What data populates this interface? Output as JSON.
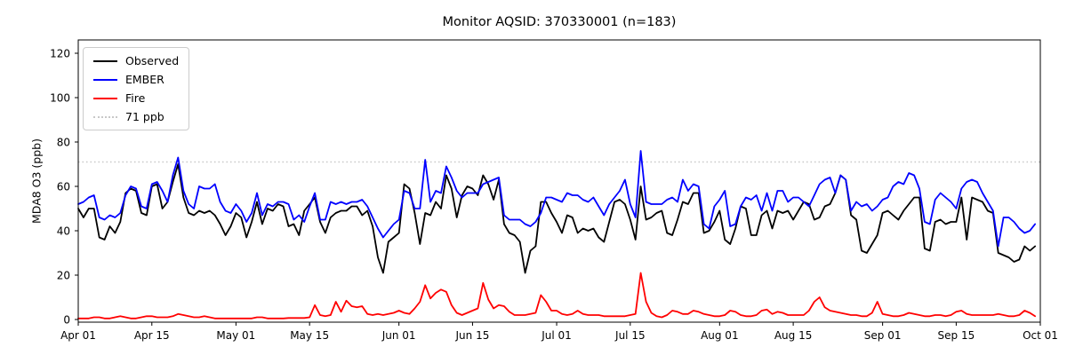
{
  "figure": {
    "title": "Monitor AQSID: 370330001 (n=183)",
    "ylabel": "MDA8 O3 (ppb)"
  },
  "chart_data": {
    "type": "line",
    "title": "Monitor AQSID: 370330001 (n=183)",
    "xlabel": "",
    "ylabel": "MDA8 O3 (ppb)",
    "grid": false,
    "legend_position": "upper-left",
    "x_unit": "days since Apr 01 (daily values, Apr 01 - Sep 30)",
    "x_domain": [
      0,
      183
    ],
    "ylim": [
      -1.2,
      126
    ],
    "yticks": [
      0,
      20,
      40,
      60,
      80,
      100,
      120
    ],
    "xticks": {
      "days": [
        0,
        14,
        30,
        44,
        61,
        75,
        91,
        105,
        122,
        136,
        153,
        167,
        183
      ],
      "labels": [
        "Apr 01",
        "Apr 15",
        "May 01",
        "May 15",
        "Jun 01",
        "Jun 15",
        "Jul 01",
        "Jul 15",
        "Aug 01",
        "Aug 15",
        "Sep 01",
        "Sep 15",
        "Oct 01"
      ]
    },
    "threshold": {
      "value": 71,
      "label": "71 ppb",
      "color": "#c8c8c8",
      "style": "dotted"
    },
    "series": [
      {
        "name": "Observed",
        "color": "#000000",
        "values": [
          50,
          46,
          50,
          50,
          37,
          36,
          42,
          39,
          44,
          57,
          59,
          58,
          48,
          47,
          60,
          61,
          50,
          53,
          62,
          70,
          55,
          48,
          47,
          49,
          48,
          49,
          47,
          43,
          38,
          42,
          48,
          46,
          37,
          44,
          53,
          43,
          50,
          49,
          52,
          51,
          42,
          43,
          38,
          49,
          52,
          55,
          44,
          39,
          46,
          48,
          49,
          49,
          51,
          51,
          47,
          49,
          42,
          28,
          21,
          35,
          37,
          39,
          61,
          59,
          48,
          34,
          48,
          47,
          53,
          50,
          65,
          59,
          46,
          56,
          60,
          59,
          56,
          65,
          61,
          54,
          63,
          43,
          39,
          38,
          35,
          21,
          31,
          33,
          53,
          53,
          48,
          44,
          39,
          47,
          46,
          39,
          41,
          40,
          41,
          37,
          35,
          44,
          53,
          54,
          52,
          45,
          36,
          60,
          45,
          46,
          48,
          49,
          39,
          38,
          45,
          53,
          52,
          57,
          57,
          39,
          40,
          44,
          49,
          36,
          34,
          41,
          51,
          50,
          38,
          38,
          47,
          49,
          41,
          49,
          48,
          49,
          45,
          49,
          53,
          52,
          45,
          46,
          51,
          52,
          57,
          65,
          63,
          47,
          45,
          31,
          30,
          34,
          38,
          48,
          49,
          47,
          45,
          49,
          52,
          55,
          55,
          32,
          31,
          44,
          45,
          43,
          44,
          44,
          55,
          36,
          55,
          54,
          53,
          49,
          48,
          30,
          29,
          28,
          26,
          27,
          33,
          31,
          33
        ]
      },
      {
        "name": "EMBER",
        "color": "#0000ff",
        "values": [
          52,
          53,
          55,
          56,
          46,
          45,
          47,
          46,
          48,
          56,
          60,
          59,
          51,
          50,
          61,
          62,
          58,
          53,
          65,
          73,
          58,
          52,
          50,
          60,
          59,
          59,
          61,
          53,
          49,
          48,
          52,
          49,
          44,
          48,
          57,
          47,
          52,
          51,
          53,
          53,
          52,
          45,
          47,
          44,
          51,
          57,
          45,
          45,
          53,
          52,
          53,
          52,
          53,
          53,
          54,
          51,
          46,
          41,
          37,
          40,
          43,
          45,
          58,
          57,
          50,
          50,
          72,
          53,
          58,
          57,
          69,
          64,
          58,
          55,
          57,
          57,
          57,
          61,
          62,
          63,
          64,
          47,
          45,
          45,
          45,
          43,
          42,
          44,
          48,
          55,
          55,
          54,
          53,
          57,
          56,
          56,
          54,
          53,
          55,
          51,
          47,
          52,
          55,
          58,
          63,
          52,
          46,
          76,
          53,
          52,
          52,
          52,
          54,
          55,
          53,
          63,
          58,
          61,
          60,
          43,
          41,
          51,
          54,
          58,
          42,
          43,
          51,
          55,
          54,
          56,
          49,
          57,
          49,
          58,
          58,
          53,
          55,
          55,
          53,
          51,
          56,
          61,
          63,
          64,
          57,
          65,
          63,
          49,
          53,
          51,
          52,
          49,
          51,
          54,
          55,
          60,
          62,
          61,
          66,
          65,
          59,
          44,
          43,
          54,
          57,
          55,
          53,
          50,
          59,
          62,
          63,
          62,
          57,
          53,
          49,
          33,
          46,
          46,
          44,
          41,
          39,
          40,
          43
        ]
      },
      {
        "name": "Fire",
        "color": "#ff0000",
        "values": [
          0.5,
          0.5,
          0.5,
          1,
          1,
          0.5,
          0.5,
          1,
          1.5,
          1,
          0.5,
          0.5,
          1,
          1.5,
          1.5,
          1,
          1,
          1,
          1.5,
          2.5,
          2,
          1.5,
          1,
          1,
          1.5,
          1,
          0.5,
          0.5,
          0.5,
          0.5,
          0.5,
          0.5,
          0.5,
          0.5,
          1,
          1,
          0.5,
          0.5,
          0.5,
          0.5,
          0.7,
          0.7,
          0.7,
          0.7,
          1,
          6.5,
          2,
          1.5,
          2,
          8,
          3.5,
          8.5,
          6,
          5.5,
          6,
          2.5,
          2,
          2.5,
          2,
          2.5,
          3,
          4,
          3,
          2.5,
          5,
          8,
          15.5,
          9.5,
          12,
          13.5,
          12.5,
          6.5,
          3,
          2,
          3,
          4,
          5,
          16.5,
          9,
          5,
          6.5,
          6,
          3.5,
          2,
          2,
          2,
          2.5,
          3,
          11,
          8,
          4,
          4,
          2.5,
          2,
          2.5,
          4,
          2.5,
          2,
          2,
          2,
          1.5,
          1.5,
          1.5,
          1.5,
          1.5,
          2,
          2.5,
          21,
          8,
          3,
          1.5,
          1,
          2,
          4,
          3.5,
          2.5,
          2.5,
          4,
          3.5,
          2.5,
          2,
          1.5,
          1.5,
          2,
          4,
          3.5,
          2,
          1.5,
          1.5,
          2,
          4,
          4.5,
          2.5,
          3.5,
          3,
          2,
          2,
          2,
          2,
          4,
          8,
          10,
          5.5,
          4,
          3.5,
          3,
          2.5,
          2,
          2,
          1.5,
          1.5,
          3,
          8,
          2.5,
          2,
          1.5,
          1.5,
          2,
          3,
          2.5,
          2,
          1.5,
          1.5,
          2,
          2,
          1.5,
          2,
          3.5,
          4,
          2.5,
          2,
          2,
          2,
          2,
          2,
          2.5,
          2,
          1.5,
          1.5,
          2,
          4,
          3,
          1.5
        ]
      }
    ],
    "legend_labels": [
      "Observed",
      "EMBER",
      "Fire",
      "71 ppb"
    ]
  }
}
